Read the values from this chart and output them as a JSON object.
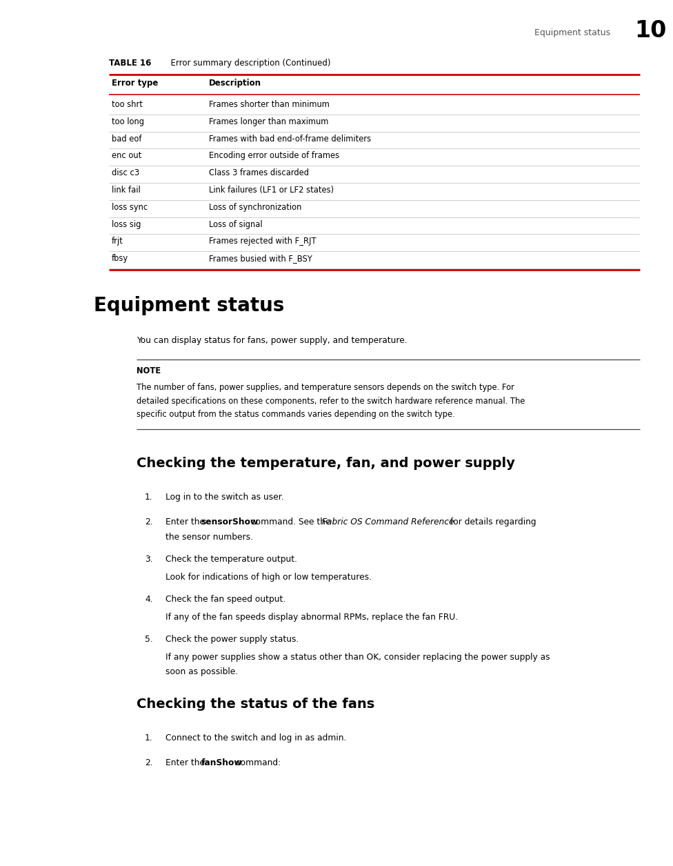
{
  "page_header_text": "Equipment status",
  "page_number": "10",
  "table_title": "TABLE 16",
  "table_subtitle": "  Error summary description (Continued)",
  "table_col1_header": "Error type",
  "table_col2_header": "Description",
  "table_rows": [
    [
      "too shrt",
      "Frames shorter than minimum"
    ],
    [
      "too long",
      "Frames longer than maximum"
    ],
    [
      "bad eof",
      "Frames with bad end-of-frame delimiters"
    ],
    [
      "enc out",
      "Encoding error outside of frames"
    ],
    [
      "disc c3",
      "Class 3 frames discarded"
    ],
    [
      "link fail",
      "Link failures (LF1 or LF2 states)"
    ],
    [
      "loss sync",
      "Loss of synchronization"
    ],
    [
      "loss sig",
      "Loss of signal"
    ],
    [
      "frjt",
      "Frames rejected with F_RJT"
    ],
    [
      "fbsy",
      "Frames busied with F_BSY"
    ]
  ],
  "section1_title": "Equipment status",
  "section1_body": "You can display status for fans, power supply, and temperature.",
  "note_label": "NOTE",
  "note_line1": "The number of fans, power supplies, and temperature sensors depends on the switch type. For",
  "note_line2": "detailed specifications on these components, refer to the switch hardware reference manual. The",
  "note_line3": "specific output from the status commands varies depending on the switch type.",
  "section2_title": "Checking the temperature, fan, and power supply",
  "section3_title": "Checking the status of the fans",
  "bg_color": "#ffffff",
  "text_color": "#000000",
  "red_color": "#cc0000",
  "gray_line": "#999999",
  "dark_line": "#333333"
}
